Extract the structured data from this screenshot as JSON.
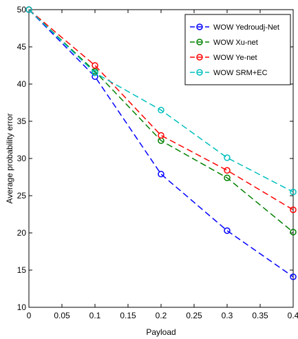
{
  "chart_data": {
    "type": "line",
    "title": "",
    "xlabel": "Payload",
    "ylabel": "Average probability error",
    "xlim": [
      0,
      0.4
    ],
    "ylim": [
      10,
      50
    ],
    "xticks": [
      0,
      0.05,
      0.1,
      0.15,
      0.2,
      0.25,
      0.3,
      0.35,
      0.4
    ],
    "xtick_labels": [
      "0",
      "0.05",
      "0.1",
      "0.15",
      "0.2",
      "0.25",
      "0.3",
      "0.35",
      "0.4"
    ],
    "yticks": [
      10,
      15,
      20,
      25,
      30,
      35,
      40,
      45,
      50
    ],
    "ytick_labels": [
      "10",
      "15",
      "20",
      "25",
      "30",
      "35",
      "40",
      "45",
      "50"
    ],
    "grid": false,
    "legend_position": "top-right",
    "x": [
      0,
      0.1,
      0.2,
      0.3,
      0.4
    ],
    "series": [
      {
        "name": "WOW Yedroudj-Net",
        "color": "#0000ff",
        "values": [
          50,
          41,
          27.9,
          20.3,
          14.1
        ]
      },
      {
        "name": "WOW Xu-net",
        "color": "#008000",
        "values": [
          50,
          41.7,
          32.4,
          27.4,
          20.1
        ]
      },
      {
        "name": "WOW Ye-net",
        "color": "#ff0000",
        "values": [
          50,
          42.5,
          33.1,
          28.4,
          23.1
        ]
      },
      {
        "name": "WOW SRM+EC",
        "color": "#00bfbf",
        "values": [
          50,
          41.5,
          36.5,
          30.1,
          25.5
        ]
      }
    ]
  }
}
